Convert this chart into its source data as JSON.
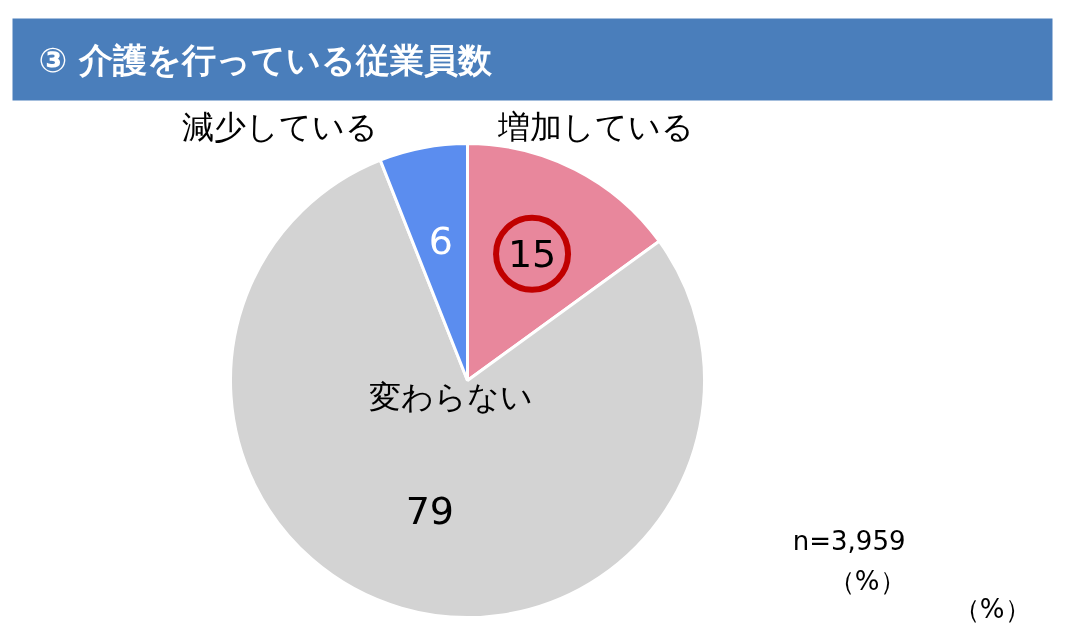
{
  "chart_data": {
    "type": "pie",
    "title": "③ 介護を行っている従業員数",
    "categories": [
      "増加している",
      "変わらない",
      "減少している"
    ],
    "values": [
      15,
      79,
      6
    ],
    "colors": [
      "#e8879c",
      "#d3d3d3",
      "#5b8def"
    ],
    "data_labels": true,
    "annotations": [
      "n=3,959",
      "（%）",
      "（%）"
    ]
  }
}
